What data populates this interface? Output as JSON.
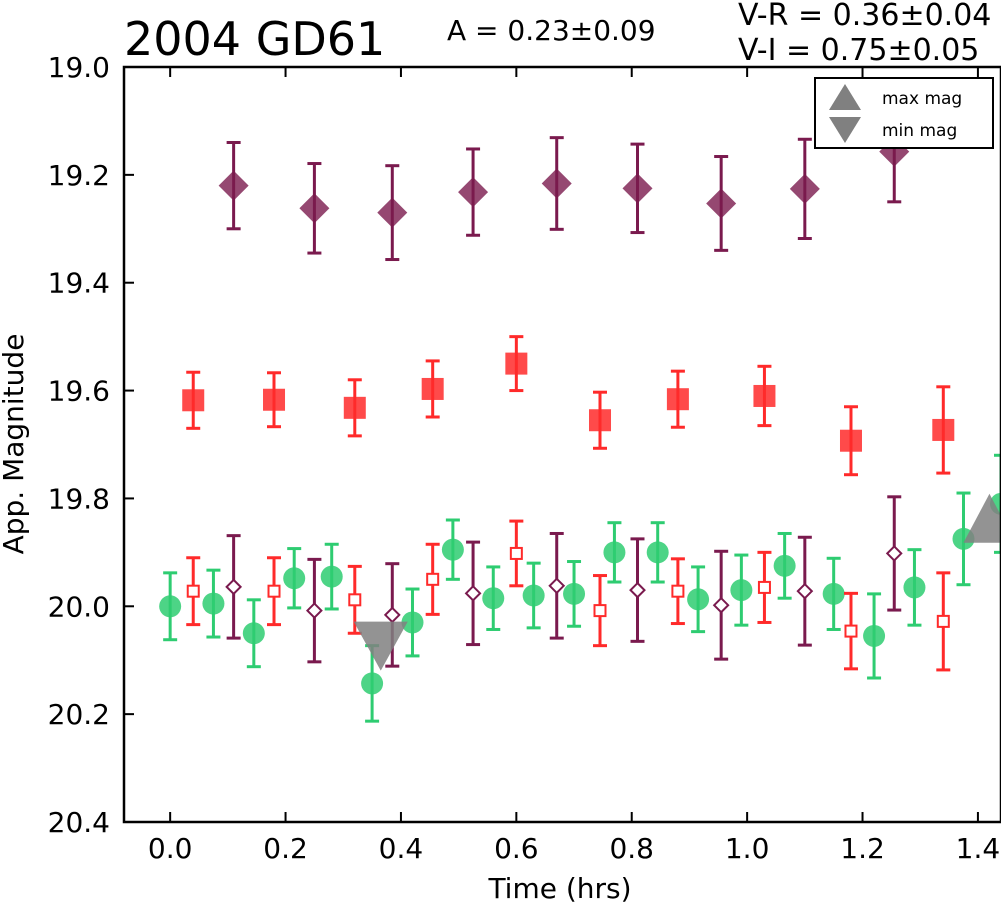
{
  "header": {
    "title": "2004 GD61",
    "amplitude": "A  = 0.23±0.09",
    "color_vr": "V-R = 0.36±0.04",
    "color_vi": "V-I  = 0.75±0.05"
  },
  "chart_data": {
    "type": "scatter",
    "xlabel": "Time (hrs)",
    "ylabel": "App. Magnitude",
    "xlim": [
      -0.08,
      1.44
    ],
    "ylim": [
      20.4,
      19.0
    ],
    "y_inverted": true,
    "xticks": [
      "0.0",
      "0.2",
      "0.4",
      "0.6",
      "0.8",
      "1.0",
      "1.2",
      "1.4"
    ],
    "yticks": [
      "19.0",
      "19.2",
      "19.4",
      "19.6",
      "19.8",
      "20.0",
      "20.2",
      "20.4"
    ],
    "legend": {
      "placement": "top-right",
      "entries": [
        {
          "label": "max mag",
          "marker": "triangle-up"
        },
        {
          "label": "min mag",
          "marker": "triangle-down"
        }
      ]
    },
    "colors": {
      "green": "#2ecc71",
      "red": "#ff2a2a",
      "purple": "#7a1a4e",
      "gray": "#808080"
    },
    "series": [
      {
        "marker": "diamond-filled",
        "color": "#7a1a4e",
        "x": [
          0.11,
          0.25,
          0.385,
          0.525,
          0.67,
          0.81,
          0.955,
          1.1,
          1.255
        ],
        "y": [
          19.22,
          19.262,
          19.27,
          19.232,
          19.216,
          19.225,
          19.253,
          19.226,
          19.157
        ],
        "err": [
          0.08,
          0.083,
          0.087,
          0.08,
          0.085,
          0.082,
          0.087,
          0.092,
          0.093
        ]
      },
      {
        "marker": "square-filled",
        "color": "#ff2a2a",
        "x": [
          0.04,
          0.18,
          0.32,
          0.455,
          0.6,
          0.745,
          0.88,
          1.03,
          1.18,
          1.34
        ],
        "y": [
          19.618,
          19.617,
          19.632,
          19.597,
          19.55,
          19.655,
          19.616,
          19.61,
          19.693,
          19.673
        ],
        "err": [
          0.052,
          0.05,
          0.052,
          0.052,
          0.05,
          0.052,
          0.052,
          0.055,
          0.063,
          0.08
        ]
      },
      {
        "marker": "circle-filled",
        "color": "#2ecc71",
        "x": [
          0.0,
          0.075,
          0.145,
          0.215,
          0.28,
          0.35,
          0.42,
          0.49,
          0.56,
          0.63,
          0.7,
          0.77,
          0.845,
          0.915,
          0.99,
          1.065,
          1.15,
          1.22,
          1.29,
          1.375,
          1.44
        ],
        "y": [
          20.0,
          19.995,
          20.05,
          19.948,
          19.945,
          20.143,
          20.03,
          19.895,
          19.985,
          19.98,
          19.977,
          19.9,
          19.9,
          19.987,
          19.97,
          19.925,
          19.977,
          20.055,
          19.965,
          19.875,
          19.81
        ],
        "err": [
          0.062,
          0.062,
          0.062,
          0.055,
          0.06,
          0.07,
          0.062,
          0.055,
          0.058,
          0.06,
          0.06,
          0.055,
          0.055,
          0.06,
          0.065,
          0.06,
          0.066,
          0.078,
          0.07,
          0.085,
          0.09
        ]
      },
      {
        "marker": "square-open",
        "color": "#ff2a2a",
        "x": [
          0.04,
          0.18,
          0.32,
          0.455,
          0.6,
          0.745,
          0.88,
          1.03,
          1.18,
          1.34
        ],
        "y": [
          19.972,
          19.972,
          19.988,
          19.95,
          19.902,
          20.008,
          19.972,
          19.965,
          20.046,
          20.028
        ],
        "err": [
          0.062,
          0.062,
          0.062,
          0.065,
          0.06,
          0.065,
          0.06,
          0.065,
          0.07,
          0.09
        ]
      },
      {
        "marker": "diamond-open",
        "color": "#7a1a4e",
        "x": [
          0.11,
          0.25,
          0.385,
          0.525,
          0.67,
          0.81,
          0.955,
          1.1,
          1.255
        ],
        "y": [
          19.964,
          20.008,
          20.016,
          19.976,
          19.962,
          19.97,
          19.998,
          19.972,
          19.902
        ],
        "err": [
          0.095,
          0.095,
          0.095,
          0.095,
          0.097,
          0.095,
          0.1,
          0.1,
          0.105
        ]
      },
      {
        "marker": "triangle-down",
        "color": "#808080",
        "x": [
          0.365
        ],
        "y": [
          20.06
        ],
        "err": [
          0
        ]
      },
      {
        "marker": "triangle-up",
        "color": "#808080",
        "x": [
          1.42
        ],
        "y": [
          19.86
        ],
        "err": [
          0
        ]
      }
    ]
  }
}
